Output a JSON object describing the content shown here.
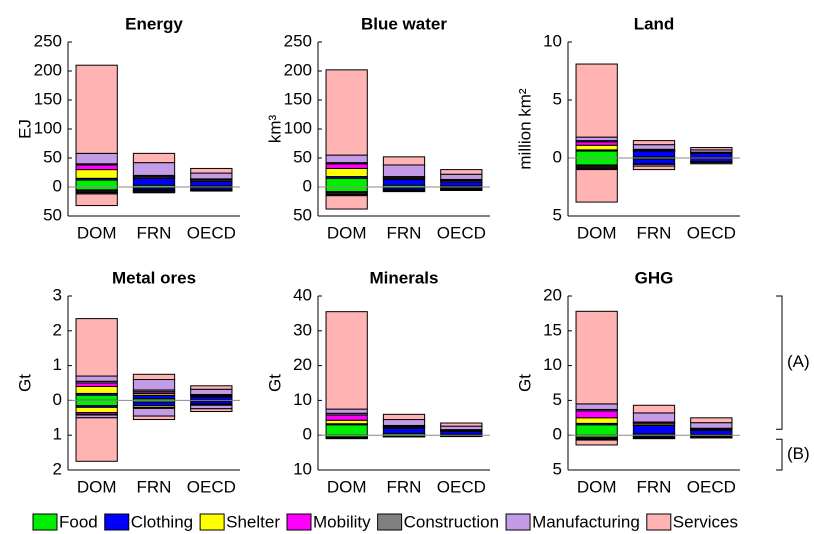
{
  "chart_data": [
    {
      "type": "bar",
      "title": "Energy",
      "ylabel": "EJ",
      "categories": [
        "DOM",
        "FRN",
        "OECD"
      ],
      "ylim": [
        -50,
        250
      ],
      "yticks": [
        {
          "value": -50,
          "label": "50"
        },
        0,
        50,
        100,
        150,
        200,
        250
      ],
      "series": [
        {
          "name": "Food",
          "color": "#00ee00",
          "values": [
            12,
            3,
            2
          ],
          "negative_values": [
            -5,
            -2,
            -1
          ]
        },
        {
          "name": "Clothing",
          "color": "#0000ff",
          "values": [
            3,
            12,
            8
          ],
          "negative_values": [
            -2,
            -3,
            -3
          ]
        },
        {
          "name": "Shelter",
          "color": "#ffff00",
          "values": [
            15,
            2,
            2
          ],
          "negative_values": [
            -2,
            -1,
            -1
          ]
        },
        {
          "name": "Mobility",
          "color": "#ff00ff",
          "values": [
            8,
            2,
            1
          ],
          "negative_values": [
            -1,
            -1,
            0
          ]
        },
        {
          "name": "Construction",
          "color": "#808080",
          "values": [
            2,
            1,
            1
          ],
          "negative_values": [
            0,
            0,
            0
          ]
        },
        {
          "name": "Manufacturing",
          "color": "#c39be6",
          "values": [
            18,
            22,
            10
          ],
          "negative_values": [
            -2,
            -2,
            -1
          ]
        },
        {
          "name": "Services",
          "color": "#ffb3b3",
          "values": [
            152,
            16,
            8
          ],
          "negative_values": [
            -20,
            -1,
            -1
          ]
        }
      ]
    },
    {
      "type": "bar",
      "title": "Blue water",
      "ylabel": "km³",
      "categories": [
        "DOM",
        "FRN",
        "OECD"
      ],
      "ylim": [
        -50,
        250
      ],
      "yticks": [
        {
          "value": -50,
          "label": "50"
        },
        0,
        50,
        100,
        150,
        200,
        250
      ],
      "series": [
        {
          "name": "Food",
          "color": "#00ee00",
          "values": [
            15,
            3,
            2
          ],
          "negative_values": [
            -8,
            -2,
            -1
          ]
        },
        {
          "name": "Clothing",
          "color": "#0000ff",
          "values": [
            3,
            10,
            7
          ],
          "negative_values": [
            -2,
            -3,
            -2
          ]
        },
        {
          "name": "Shelter",
          "color": "#ffff00",
          "values": [
            14,
            2,
            2
          ],
          "negative_values": [
            -2,
            -1,
            -1
          ]
        },
        {
          "name": "Mobility",
          "color": "#ff00ff",
          "values": [
            8,
            2,
            1
          ],
          "negative_values": [
            -1,
            0,
            0
          ]
        },
        {
          "name": "Construction",
          "color": "#808080",
          "values": [
            2,
            1,
            1
          ],
          "negative_values": [
            0,
            0,
            0
          ]
        },
        {
          "name": "Manufacturing",
          "color": "#c39be6",
          "values": [
            13,
            20,
            9
          ],
          "negative_values": [
            -2,
            -1,
            -1
          ]
        },
        {
          "name": "Services",
          "color": "#ffb3b3",
          "values": [
            147,
            14,
            8
          ],
          "negative_values": [
            -23,
            -1,
            -1
          ]
        }
      ]
    },
    {
      "type": "bar",
      "title": "Land",
      "ylabel": "million km²",
      "categories": [
        "DOM",
        "FRN",
        "OECD"
      ],
      "ylim": [
        -5,
        10
      ],
      "yticks": [
        {
          "value": -5,
          "label": "5"
        },
        0,
        5,
        10
      ],
      "series": [
        {
          "name": "Food",
          "color": "#00ee00",
          "values": [
            0.6,
            0.1,
            0.05
          ],
          "negative_values": [
            -0.6,
            -0.1,
            -0.05
          ]
        },
        {
          "name": "Clothing",
          "color": "#0000ff",
          "values": [
            0.1,
            0.5,
            0.35
          ],
          "negative_values": [
            -0.1,
            -0.4,
            -0.25
          ]
        },
        {
          "name": "Shelter",
          "color": "#ffff00",
          "values": [
            0.4,
            0.05,
            0.05
          ],
          "negative_values": [
            -0.1,
            -0.05,
            0
          ]
        },
        {
          "name": "Mobility",
          "color": "#ff00ff",
          "values": [
            0.3,
            0.05,
            0.05
          ],
          "negative_values": [
            -0.1,
            0,
            0
          ]
        },
        {
          "name": "Construction",
          "color": "#808080",
          "values": [
            0.1,
            0.05,
            0
          ],
          "negative_values": [
            0,
            0,
            0
          ]
        },
        {
          "name": "Manufacturing",
          "color": "#c39be6",
          "values": [
            0.3,
            0.4,
            0.2
          ],
          "negative_values": [
            -0.1,
            -0.15,
            -0.1
          ]
        },
        {
          "name": "Services",
          "color": "#ffb3b3",
          "values": [
            6.3,
            0.35,
            0.2
          ],
          "negative_values": [
            -2.8,
            -0.3,
            -0.1
          ]
        }
      ]
    },
    {
      "type": "bar",
      "title": "Metal ores",
      "ylabel": "Gt",
      "categories": [
        "DOM",
        "FRN",
        "OECD"
      ],
      "ylim": [
        -2,
        3
      ],
      "yticks": [
        {
          "value": -2,
          "label": "2"
        },
        {
          "value": -1,
          "label": "1"
        },
        0,
        1,
        2,
        3
      ],
      "series": [
        {
          "name": "Food",
          "color": "#00ee00",
          "values": [
            0.15,
            0.05,
            0.02
          ],
          "negative_values": [
            -0.15,
            -0.05,
            -0.02
          ]
        },
        {
          "name": "Clothing",
          "color": "#0000ff",
          "values": [
            0.05,
            0.1,
            0.08
          ],
          "negative_values": [
            -0.05,
            -0.1,
            -0.08
          ]
        },
        {
          "name": "Shelter",
          "color": "#ffff00",
          "values": [
            0.2,
            0.05,
            0.03
          ],
          "negative_values": [
            -0.15,
            -0.05,
            -0.02
          ]
        },
        {
          "name": "Mobility",
          "color": "#ff00ff",
          "values": [
            0.1,
            0.05,
            0.02
          ],
          "negative_values": [
            -0.05,
            -0.03,
            -0.02
          ]
        },
        {
          "name": "Construction",
          "color": "#808080",
          "values": [
            0.05,
            0.05,
            0.02
          ],
          "negative_values": [
            -0.02,
            0,
            0
          ]
        },
        {
          "name": "Manufacturing",
          "color": "#c39be6",
          "values": [
            0.15,
            0.3,
            0.15
          ],
          "negative_values": [
            -0.08,
            -0.22,
            -0.1
          ]
        },
        {
          "name": "Services",
          "color": "#ffb3b3",
          "values": [
            1.65,
            0.15,
            0.1
          ],
          "negative_values": [
            -1.25,
            -0.1,
            -0.08
          ]
        }
      ]
    },
    {
      "type": "bar",
      "title": "Minerals",
      "ylabel": "Gt",
      "categories": [
        "DOM",
        "FRN",
        "OECD"
      ],
      "ylim": [
        -10,
        40
      ],
      "yticks": [
        {
          "value": -10,
          "label": "10"
        },
        0,
        10,
        20,
        30,
        40
      ],
      "series": [
        {
          "name": "Food",
          "color": "#00ee00",
          "values": [
            3,
            0.5,
            0.3
          ],
          "negative_values": [
            -0.5,
            -0.1,
            -0.1
          ]
        },
        {
          "name": "Clothing",
          "color": "#0000ff",
          "values": [
            0.3,
            1.5,
            0.8
          ],
          "negative_values": [
            -0.1,
            -0.2,
            -0.1
          ]
        },
        {
          "name": "Shelter",
          "color": "#ffff00",
          "values": [
            1,
            0.3,
            0.2
          ],
          "negative_values": [
            -0.1,
            0,
            0
          ]
        },
        {
          "name": "Mobility",
          "color": "#ff00ff",
          "values": [
            1.5,
            0.3,
            0.2
          ],
          "negative_values": [
            -0.1,
            0,
            0
          ]
        },
        {
          "name": "Construction",
          "color": "#808080",
          "values": [
            0.5,
            0.2,
            0.1
          ],
          "negative_values": [
            0,
            0,
            0
          ]
        },
        {
          "name": "Manufacturing",
          "color": "#c39be6",
          "values": [
            1.2,
            1.7,
            1
          ],
          "negative_values": [
            -0.1,
            -0.1,
            -0.1
          ]
        },
        {
          "name": "Services",
          "color": "#ffb3b3",
          "values": [
            28,
            1.5,
            0.9
          ],
          "negative_values": [
            -0.1,
            -0.1,
            -0.1
          ]
        }
      ]
    },
    {
      "type": "bar",
      "title": "GHG",
      "ylabel": "Gt",
      "categories": [
        "DOM",
        "FRN",
        "OECD"
      ],
      "ylim": [
        -5,
        20
      ],
      "yticks": [
        {
          "value": -5,
          "label": "5"
        },
        0,
        5,
        10,
        15,
        20
      ],
      "annotations": [
        "(A)",
        "(B)"
      ],
      "series": [
        {
          "name": "Food",
          "color": "#00ee00",
          "values": [
            1.5,
            0.2,
            0.1
          ],
          "negative_values": [
            -0.3,
            -0.1,
            -0.1
          ]
        },
        {
          "name": "Clothing",
          "color": "#0000ff",
          "values": [
            0.2,
            1.2,
            0.6
          ],
          "negative_values": [
            -0.1,
            -0.2,
            -0.1
          ]
        },
        {
          "name": "Shelter",
          "color": "#ffff00",
          "values": [
            0.8,
            0.2,
            0.1
          ],
          "negative_values": [
            -0.1,
            0,
            0
          ]
        },
        {
          "name": "Mobility",
          "color": "#ff00ff",
          "values": [
            1,
            0.2,
            0.1
          ],
          "negative_values": [
            -0.1,
            0,
            0
          ]
        },
        {
          "name": "Construction",
          "color": "#808080",
          "values": [
            0.2,
            0.1,
            0.1
          ],
          "negative_values": [
            0,
            0,
            0
          ]
        },
        {
          "name": "Manufacturing",
          "color": "#c39be6",
          "values": [
            0.8,
            1.3,
            0.8
          ],
          "negative_values": [
            -0.1,
            -0.1,
            -0.1
          ]
        },
        {
          "name": "Services",
          "color": "#ffb3b3",
          "values": [
            13.3,
            1.1,
            0.7
          ],
          "negative_values": [
            -0.7,
            -0.1,
            -0.1
          ]
        }
      ]
    }
  ]
}
